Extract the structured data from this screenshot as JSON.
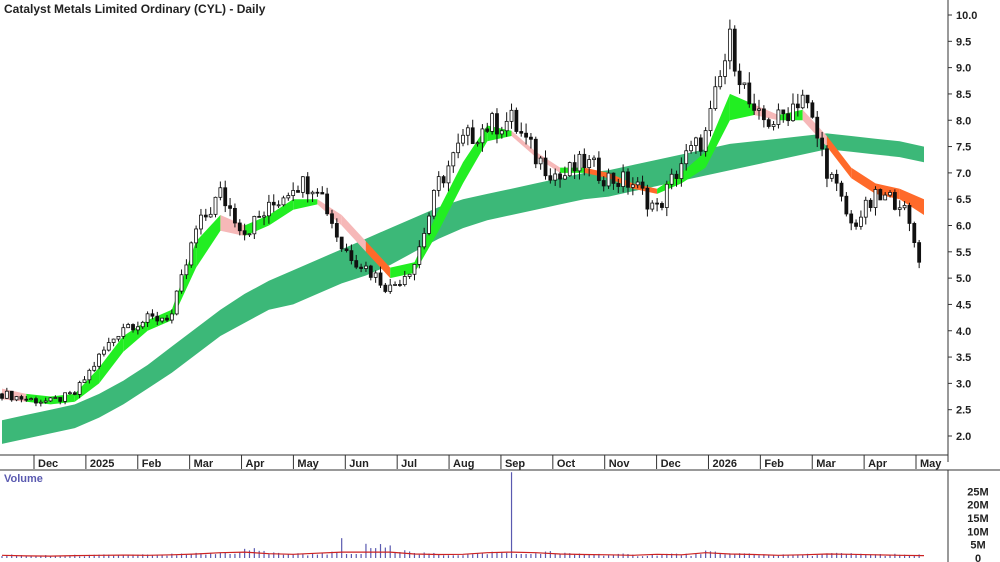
{
  "chart_data": {
    "type": "candlestick",
    "title": "Catalyst Metals Limited Ordinary (CYL) - Daily",
    "colors": {
      "long_band": "#3cb878",
      "short_band_up": "#22ee22",
      "short_band_down": "#ff6a2a",
      "short_band_pale": "#f6b8b8",
      "candle": "#111111",
      "volume": "#5a5ab0",
      "volume_avg": "#cc2222"
    },
    "price_axis": {
      "side": "right",
      "ylim": [
        1.5,
        10.1
      ],
      "ticks": [
        "10.0",
        "9.5",
        "9.0",
        "8.5",
        "8.0",
        "7.5",
        "7.0",
        "6.5",
        "6.0",
        "5.5",
        "5.0",
        "4.5",
        "4.0",
        "3.5",
        "3.0",
        "2.5",
        "2.0"
      ]
    },
    "x_axis": {
      "labels": [
        "Dec",
        "2025",
        "Feb",
        "Mar",
        "Apr",
        "May",
        "Jun",
        "Jul",
        "Aug",
        "Sep",
        "Oct",
        "Nov",
        "Dec",
        "2026",
        "Feb",
        "Mar",
        "Apr",
        "May"
      ]
    },
    "series": {
      "x": [
        0,
        10,
        20,
        30,
        40,
        50,
        60,
        70,
        80,
        90,
        100,
        110,
        120,
        130,
        140,
        150,
        160,
        170,
        180,
        190,
        200,
        210,
        220,
        230,
        240,
        250,
        260,
        270,
        280,
        290,
        300,
        310,
        320,
        330,
        340,
        350,
        360,
        370,
        380
      ],
      "close": [
        2.8,
        2.7,
        2.65,
        2.8,
        3.5,
        4.1,
        4.2,
        4.3,
        5.9,
        6.6,
        5.9,
        6.3,
        6.8,
        6.8,
        5.6,
        5.2,
        4.8,
        5.3,
        6.8,
        7.6,
        7.9,
        8.0,
        7.3,
        6.9,
        7.2,
        6.9,
        6.8,
        6.3,
        7.2,
        7.7,
        9.5,
        8.0,
        8.0,
        8.5,
        7.1,
        6.0,
        6.5,
        6.5,
        5.15
      ],
      "long_band_low": [
        1.85,
        1.95,
        2.05,
        2.15,
        2.35,
        2.6,
        2.9,
        3.2,
        3.55,
        3.9,
        4.15,
        4.4,
        4.5,
        4.7,
        4.9,
        5.05,
        5.25,
        5.5,
        5.75,
        5.95,
        6.1,
        6.2,
        6.3,
        6.4,
        6.5,
        6.55,
        6.65,
        6.75,
        6.85,
        6.95,
        7.05,
        7.15,
        7.25,
        7.35,
        7.45,
        7.4,
        7.35,
        7.3,
        7.2
      ],
      "long_band_high": [
        2.3,
        2.4,
        2.5,
        2.6,
        2.8,
        3.05,
        3.35,
        3.7,
        4.05,
        4.4,
        4.7,
        4.95,
        5.15,
        5.35,
        5.55,
        5.75,
        5.95,
        6.15,
        6.35,
        6.5,
        6.6,
        6.7,
        6.8,
        6.9,
        7.0,
        7.05,
        7.15,
        7.25,
        7.35,
        7.45,
        7.55,
        7.6,
        7.65,
        7.7,
        7.75,
        7.7,
        7.65,
        7.6,
        7.5
      ],
      "short_band_low": [
        2.7,
        2.65,
        2.6,
        2.65,
        3.0,
        3.6,
        4.0,
        4.2,
        5.2,
        5.9,
        5.8,
        6.0,
        6.3,
        6.4,
        6.0,
        5.5,
        5.0,
        5.1,
        5.9,
        6.8,
        7.6,
        7.7,
        7.3,
        7.0,
        7.0,
        6.9,
        6.7,
        6.6,
        6.8,
        7.1,
        8.0,
        8.1,
        8.0,
        8.0,
        7.5,
        6.9,
        6.6,
        6.5,
        6.2
      ],
      "short_band_high": [
        2.9,
        2.8,
        2.75,
        2.8,
        3.3,
        3.9,
        4.2,
        4.4,
        5.7,
        6.2,
        6.0,
        6.2,
        6.5,
        6.5,
        6.2,
        5.7,
        5.2,
        5.3,
        6.3,
        7.2,
        7.9,
        7.8,
        7.4,
        7.1,
        7.1,
        7.0,
        6.8,
        6.7,
        7.0,
        7.4,
        8.5,
        8.3,
        8.1,
        8.2,
        7.7,
        7.1,
        6.8,
        6.7,
        6.5
      ],
      "volume_max": 30,
      "volume_ticks": [
        "25M",
        "20M",
        "15M",
        "10M",
        "5M",
        "0"
      ],
      "volume": [
        1,
        0.8,
        0.7,
        0.9,
        1,
        1.1,
        1,
        1.2,
        1.5,
        2,
        3,
        1.6,
        1.4,
        1.8,
        5.5,
        4,
        3.5,
        1.5,
        1.3,
        1.4,
        2,
        30,
        2,
        1.5,
        1.3,
        1.2,
        1,
        1.4,
        1.2,
        2,
        1.5,
        1.3,
        1,
        1.2,
        1.5,
        1.4,
        1.2,
        1,
        0.9
      ]
    },
    "volume_panel": {
      "title": "Volume",
      "ticks": [
        "25M",
        "20M",
        "15M",
        "10M",
        "5M",
        "0"
      ]
    },
    "grid": false,
    "legend": "none"
  }
}
